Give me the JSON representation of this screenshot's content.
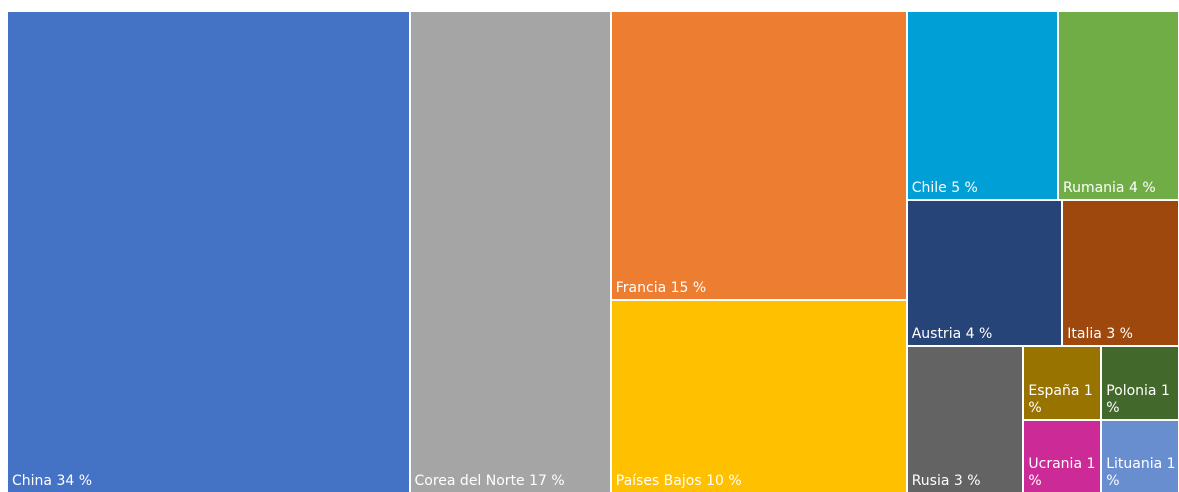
{
  "chart_data": {
    "type": "treemap",
    "categories": [
      "China",
      "Corea del Norte",
      "Francia",
      "Países Bajos",
      "Chile",
      "Rumania",
      "Austria",
      "Italia",
      "Rusia",
      "España",
      "Ucrania",
      "Polonia",
      "Lituania"
    ],
    "values": [
      34,
      17,
      15,
      10,
      5,
      4,
      4,
      3,
      3,
      1,
      1,
      1,
      1
    ],
    "value_labels": [
      "34 %",
      "17 %",
      "15 %",
      "10 %",
      "5 %",
      "4 %",
      "4 %",
      "3 %",
      "3 %",
      "1 %",
      "1 %",
      "1 %",
      "1 %"
    ],
    "colors": [
      "#4472c4",
      "#a5a5a5",
      "#ed7d31",
      "#ffc000",
      "#009fd5",
      "#70ad47",
      "#264478",
      "#9e480e",
      "#636363",
      "#997300",
      "#cc2a96",
      "#43682b",
      "#698ed0"
    ]
  }
}
